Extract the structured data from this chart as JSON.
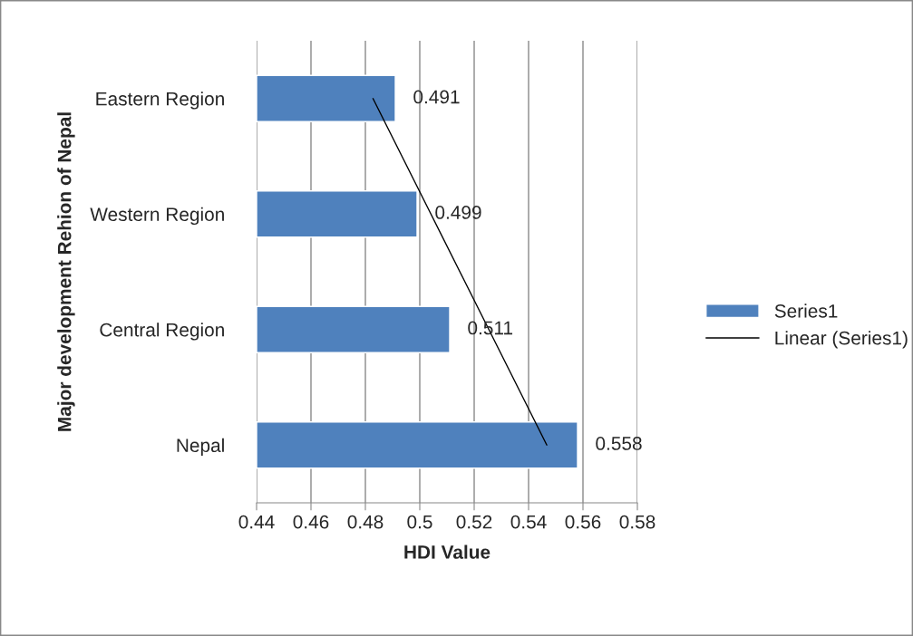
{
  "chart_data": {
    "type": "bar",
    "orientation": "horizontal",
    "categories": [
      "Eastern Region",
      "Western Region",
      "Central Region",
      "Nepal"
    ],
    "series": [
      {
        "name": "Series1",
        "color": "#4f81bd",
        "values": [
          0.491,
          0.499,
          0.511,
          0.558
        ],
        "value_labels": [
          "0.491",
          "0.499",
          "0.511",
          "0.558"
        ]
      },
      {
        "name": "Linear (Series1)",
        "type": "line",
        "color": "#000000",
        "line_style": "solid",
        "values": [
          0.4828,
          0.5041,
          0.5254,
          0.5467
        ]
      }
    ],
    "xlabel": "HDI Value",
    "ylabel": "Major development Rehion of Nepal",
    "xlim": [
      0.44,
      0.58
    ],
    "xticks": [
      0.44,
      0.46,
      0.48,
      0.5,
      0.52,
      0.54,
      0.56,
      0.58
    ],
    "grid": "x",
    "legend": "right"
  }
}
